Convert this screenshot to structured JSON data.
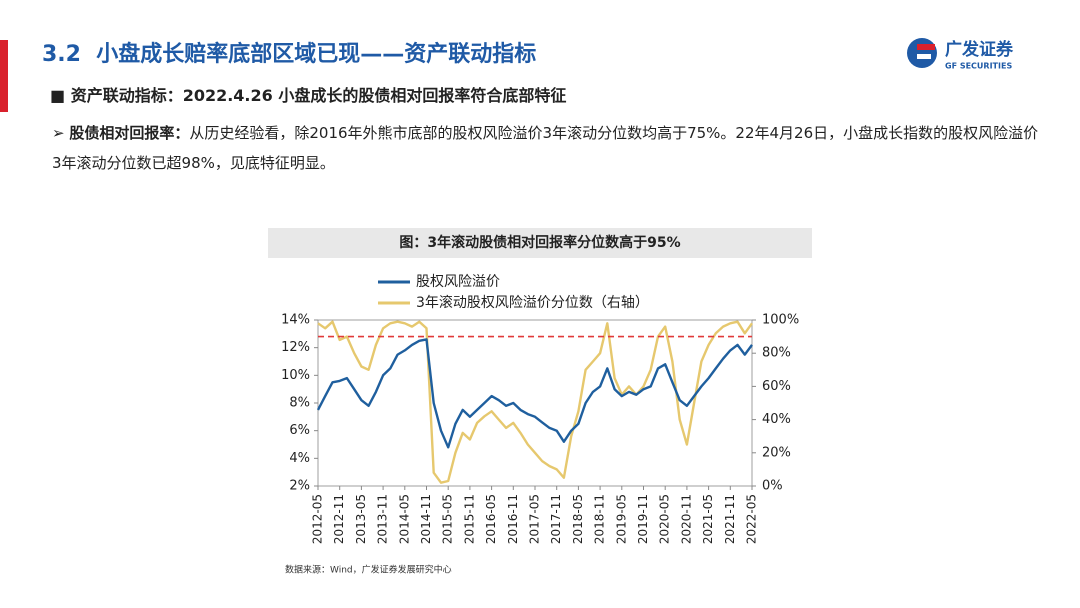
{
  "header": {
    "title": "3.2  小盘成长赔率底部区域已现——资产联动指标",
    "logo_name": "广发证券",
    "logo_en": "GF SECURITIES"
  },
  "bullet": "资产联动指标：2022.4.26 小盘成长的股债相对回报率符合底部特征",
  "paragraph": {
    "label": "股债相对回报率：",
    "text": "从历史经验看，除2016年外熊市底部的股权风险溢价3年滚动分位数均高于75%。22年4月26日，小盘成长指数的股权风险溢价3年滚动分位数已超98%，见底特征明显。"
  },
  "chart_data": {
    "type": "line",
    "title": "图：3年滚动股债相对回报率分位数高于95%",
    "categories": [
      "2012-05",
      null,
      null,
      "2012-11",
      null,
      null,
      "2013-05",
      null,
      null,
      "2013-11",
      null,
      null,
      "2014-05",
      null,
      null,
      "2014-11",
      null,
      null,
      "2015-05",
      null,
      null,
      "2015-11",
      null,
      null,
      "2016-05",
      null,
      null,
      "2016-11",
      null,
      null,
      "2017-05",
      null,
      null,
      "2017-11",
      null,
      null,
      "2018-05",
      null,
      null,
      "2018-11",
      null,
      null,
      "2019-05",
      null,
      null,
      "2019-11",
      null,
      null,
      "2020-05",
      null,
      null,
      "2020-11",
      null,
      null,
      "2021-05",
      null,
      null,
      "2021-11",
      null,
      null,
      "2022-05"
    ],
    "series": [
      {
        "name": "股权风险溢价",
        "color": "#1f5f9e",
        "values": [
          7.5,
          8.5,
          9.5,
          9.6,
          9.8,
          9.0,
          8.2,
          7.8,
          8.8,
          10.0,
          10.5,
          11.5,
          11.8,
          12.2,
          12.5,
          12.6,
          8.0,
          6.0,
          4.8,
          6.5,
          7.5,
          7.0,
          7.5,
          8.0,
          8.5,
          8.2,
          7.8,
          8.0,
          7.5,
          7.2,
          7.0,
          6.6,
          6.2,
          6.0,
          5.2,
          6.0,
          6.5,
          8.0,
          8.8,
          9.2,
          10.5,
          9.0,
          8.5,
          8.8,
          8.6,
          9.0,
          9.2,
          10.5,
          10.8,
          9.5,
          8.2,
          7.8,
          8.5,
          9.2,
          9.8,
          10.5,
          11.2,
          11.8,
          12.2,
          11.5,
          12.2
        ]
      },
      {
        "name": "3年滚动股权风险溢价分位数（右轴）",
        "color": "#e6c86e",
        "axis": "y2",
        "values": [
          98,
          95,
          99,
          88,
          90,
          80,
          72,
          70,
          85,
          95,
          98,
          99,
          98,
          96,
          99,
          95,
          8,
          2,
          3,
          20,
          32,
          28,
          38,
          42,
          45,
          40,
          35,
          38,
          32,
          25,
          20,
          15,
          12,
          10,
          5,
          30,
          45,
          70,
          75,
          80,
          98,
          65,
          55,
          60,
          55,
          60,
          70,
          90,
          96,
          75,
          40,
          25,
          50,
          75,
          85,
          92,
          96,
          98,
          99,
          92,
          98
        ]
      }
    ],
    "ylim": [
      2,
      14
    ],
    "yticks": [
      {
        "value": 2,
        "label": "2%"
      },
      {
        "value": 4,
        "label": "4%"
      },
      {
        "value": 6,
        "label": "6%"
      },
      {
        "value": 8,
        "label": "8%"
      },
      {
        "value": 10,
        "label": "10%"
      },
      {
        "value": 12,
        "label": "12%"
      },
      {
        "value": 14,
        "label": "14%"
      }
    ],
    "y2lim": [
      0,
      100
    ],
    "y2ticks": [
      {
        "value": 0,
        "label": "0%"
      },
      {
        "value": 20,
        "label": "20%"
      },
      {
        "value": 40,
        "label": "40%"
      },
      {
        "value": 60,
        "label": "60%"
      },
      {
        "value": 80,
        "label": "80%"
      },
      {
        "value": 100,
        "label": "100%"
      }
    ],
    "reference_line": {
      "value": 90,
      "axis": "y2",
      "color": "#e03a3a"
    },
    "source": "数据来源：Wind，广发证券发展研究中心"
  }
}
